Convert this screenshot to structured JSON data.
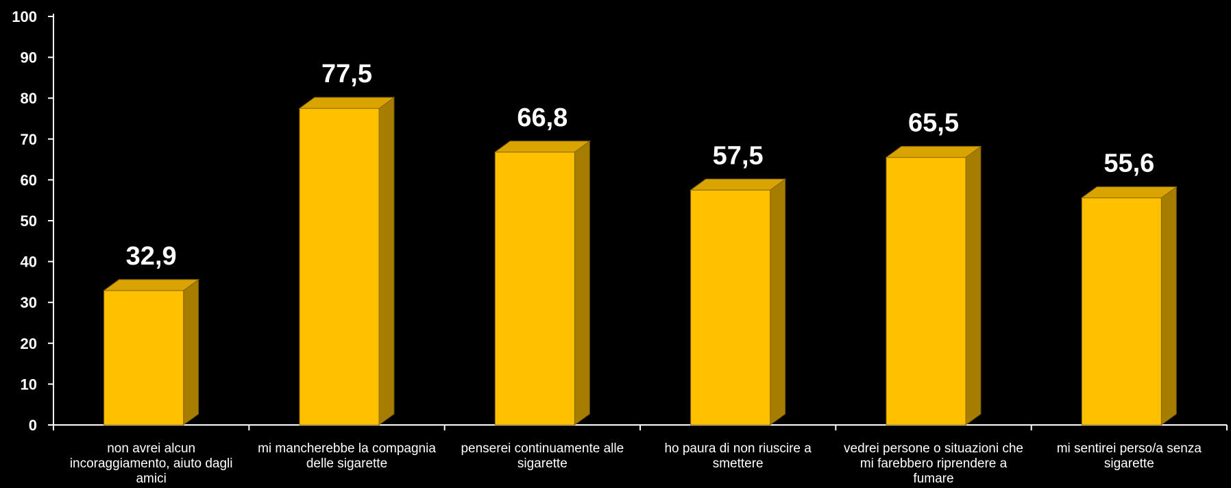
{
  "chart_data": {
    "type": "bar",
    "style": "3d-column",
    "bar_color": "#FFC000",
    "bar_side_color": "#A77D00",
    "bar_top_color": "#D9A300",
    "background_color": "#000000",
    "text_color": "#FFFFFF",
    "categories": [
      "non avrei alcun incoraggiamento, aiuto dagli amici",
      "mi mancherebbe la compagnia delle sigarette",
      "penserei continuamente alle sigarette",
      "ho paura di non riuscire a smettere",
      "vedrei persone o situazioni che mi farebbero riprendere a fumare",
      "mi sentirei perso/a senza sigarette"
    ],
    "values": [
      32.9,
      77.5,
      66.8,
      57.5,
      65.5,
      55.6
    ],
    "data_labels": [
      "32,9",
      "77,5",
      "66,8",
      "57,5",
      "65,5",
      "55,6"
    ],
    "ylim": [
      0,
      100
    ],
    "y_ticks": [
      "0",
      "10",
      "20",
      "30",
      "40",
      "50",
      "60",
      "70",
      "80",
      "90",
      "100"
    ],
    "grid": false,
    "legend": "none"
  }
}
